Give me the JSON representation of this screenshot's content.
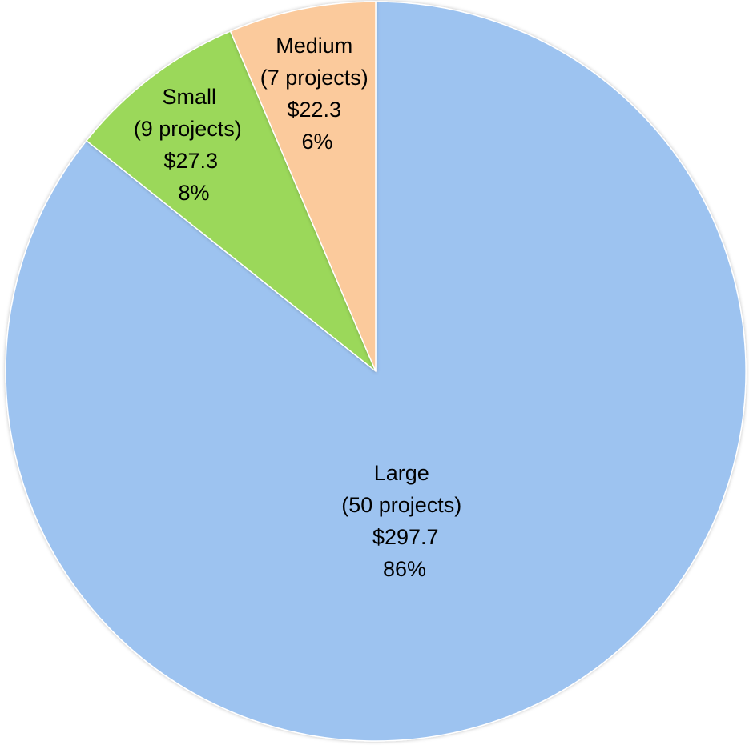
{
  "chart_data": {
    "type": "pie",
    "title": "",
    "start_angle_deg": 0,
    "direction": "clockwise",
    "slices": [
      {
        "name": "Large",
        "projects_text": "(50 projects)",
        "amount_text": "$297.7",
        "percent_text": "86%",
        "value": 297.7,
        "color": "#9DC3F0"
      },
      {
        "name": "Small",
        "projects_text": "(9 projects)",
        "amount_text": "$27.3",
        "percent_text": "8%",
        "value": 27.3,
        "color": "#9BD85A"
      },
      {
        "name": "Medium",
        "projects_text": "(7 projects)",
        "amount_text": "$22.3",
        "percent_text": "6%",
        "value": 22.3,
        "color": "#FBCA9C"
      }
    ],
    "legend": "none",
    "grid": false
  }
}
